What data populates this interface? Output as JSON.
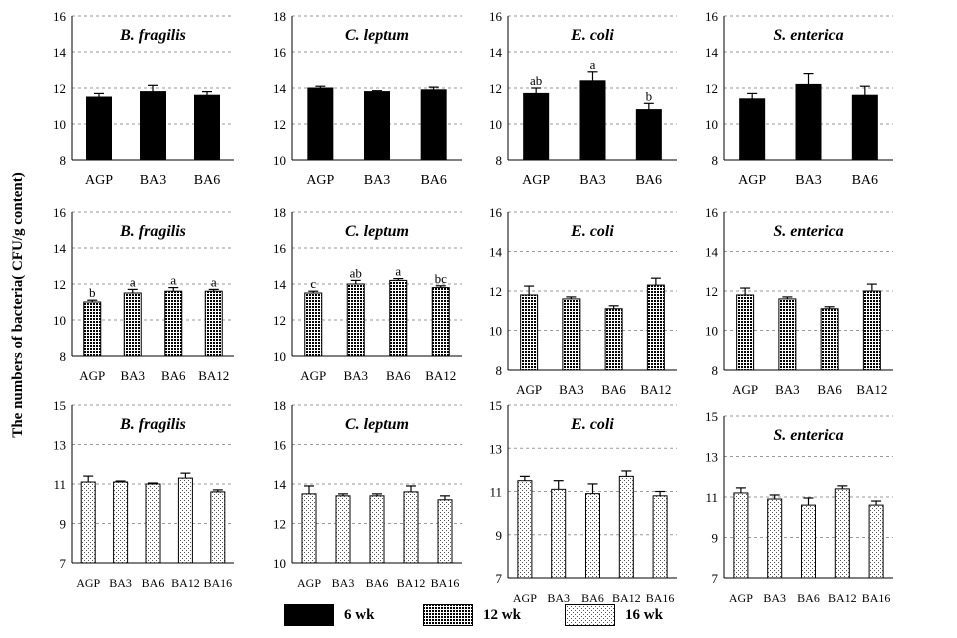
{
  "figure": {
    "y_axis_label": "The numbers of bacteria( CFU/g content)",
    "legend": [
      {
        "label": "6 wk",
        "pattern": "solid"
      },
      {
        "label": "12 wk",
        "pattern": "dense"
      },
      {
        "label": "16 wk",
        "pattern": "light"
      }
    ]
  },
  "chart_data": [
    {
      "type": "bar",
      "title": "B. fragilis",
      "row": "6 wk",
      "pattern": "solid",
      "categories": [
        "AGP",
        "BA3",
        "BA6"
      ],
      "values": [
        11.5,
        11.8,
        11.6
      ],
      "errors": [
        0.2,
        0.35,
        0.2
      ],
      "letters": [
        "",
        "",
        ""
      ],
      "ylim": [
        8,
        16
      ],
      "yticks": [
        8,
        10,
        12,
        14,
        16
      ]
    },
    {
      "type": "bar",
      "title": "C. leptum",
      "row": "6 wk",
      "pattern": "solid",
      "categories": [
        "AGP",
        "BA3",
        "BA6"
      ],
      "values": [
        14.0,
        13.8,
        13.9
      ],
      "errors": [
        0.1,
        0.05,
        0.15
      ],
      "letters": [
        "",
        "",
        ""
      ],
      "ylim": [
        10,
        18
      ],
      "yticks": [
        10,
        12,
        14,
        16,
        18
      ]
    },
    {
      "type": "bar",
      "title": "E. coli",
      "row": "6 wk",
      "pattern": "solid",
      "categories": [
        "AGP",
        "BA3",
        "BA6"
      ],
      "values": [
        11.7,
        12.4,
        10.8
      ],
      "errors": [
        0.3,
        0.5,
        0.35
      ],
      "letters": [
        "ab",
        "a",
        "b"
      ],
      "ylim": [
        8,
        16
      ],
      "yticks": [
        8,
        10,
        12,
        14,
        16
      ]
    },
    {
      "type": "bar",
      "title": "S. enterica",
      "row": "6 wk",
      "pattern": "solid",
      "categories": [
        "AGP",
        "BA3",
        "BA6"
      ],
      "values": [
        11.4,
        12.2,
        11.6
      ],
      "errors": [
        0.3,
        0.6,
        0.5
      ],
      "letters": [
        "",
        "",
        ""
      ],
      "ylim": [
        8,
        16
      ],
      "yticks": [
        8,
        10,
        12,
        14,
        16
      ]
    },
    {
      "type": "bar",
      "title": "B. fragilis",
      "row": "12 wk",
      "pattern": "dense",
      "categories": [
        "AGP",
        "BA3",
        "BA6",
        "BA12"
      ],
      "values": [
        11.0,
        11.5,
        11.6,
        11.6
      ],
      "errors": [
        0.1,
        0.2,
        0.2,
        0.1
      ],
      "letters": [
        "b",
        "a",
        "a",
        "a"
      ],
      "ylim": [
        8,
        16
      ],
      "yticks": [
        8,
        10,
        12,
        14,
        16
      ]
    },
    {
      "type": "bar",
      "title": "C. leptum",
      "row": "12 wk",
      "pattern": "dense",
      "categories": [
        "AGP",
        "BA3",
        "BA6",
        "BA12"
      ],
      "values": [
        13.5,
        14.0,
        14.2,
        13.8
      ],
      "errors": [
        0.1,
        0.2,
        0.1,
        0.1
      ],
      "letters": [
        "c",
        "ab",
        "a",
        "bc"
      ],
      "ylim": [
        10,
        18
      ],
      "yticks": [
        10,
        12,
        14,
        16,
        18
      ]
    },
    {
      "type": "bar",
      "title": "E. coli",
      "row": "12 wk",
      "pattern": "dense",
      "categories": [
        "AGP",
        "BA3",
        "BA6",
        "BA12"
      ],
      "values": [
        11.8,
        11.6,
        11.1,
        12.3
      ],
      "errors": [
        0.45,
        0.1,
        0.15,
        0.35
      ],
      "letters": [
        "",
        "",
        "",
        ""
      ],
      "ylim": [
        8,
        16
      ],
      "yticks": [
        8,
        10,
        12,
        14,
        16
      ]
    },
    {
      "type": "bar",
      "title": "S. enterica",
      "row": "12 wk",
      "pattern": "dense",
      "categories": [
        "AGP",
        "BA3",
        "BA6",
        "BA12"
      ],
      "values": [
        11.8,
        11.6,
        11.1,
        12.0
      ],
      "errors": [
        0.35,
        0.1,
        0.1,
        0.35
      ],
      "letters": [
        "",
        "",
        "",
        ""
      ],
      "ylim": [
        8,
        16
      ],
      "yticks": [
        8,
        10,
        12,
        14,
        16
      ]
    },
    {
      "type": "bar",
      "title": "B. fragilis",
      "row": "16 wk",
      "pattern": "light",
      "categories": [
        "AGP",
        "BA3",
        "BA6",
        "BA12",
        "BA16"
      ],
      "values": [
        11.1,
        11.1,
        11.0,
        11.3,
        10.6
      ],
      "errors": [
        0.3,
        0.05,
        0.05,
        0.25,
        0.1
      ],
      "letters": [
        "",
        "",
        "",
        "",
        ""
      ],
      "ylim": [
        7,
        15
      ],
      "yticks": [
        7,
        9,
        11,
        13,
        15
      ]
    },
    {
      "type": "bar",
      "title": "C. leptum",
      "row": "16 wk",
      "pattern": "light",
      "categories": [
        "AGP",
        "BA3",
        "BA6",
        "BA12",
        "BA16"
      ],
      "values": [
        13.5,
        13.4,
        13.4,
        13.6,
        13.2
      ],
      "errors": [
        0.4,
        0.1,
        0.1,
        0.3,
        0.2
      ],
      "letters": [
        "",
        "",
        "",
        "",
        ""
      ],
      "ylim": [
        10,
        18
      ],
      "yticks": [
        10,
        12,
        14,
        16,
        18
      ]
    },
    {
      "type": "bar",
      "title": "E. coli",
      "row": "16 wk",
      "pattern": "light",
      "categories": [
        "AGP",
        "BA3",
        "BA6",
        "BA12",
        "BA16"
      ],
      "values": [
        11.5,
        11.1,
        10.9,
        11.7,
        10.8
      ],
      "errors": [
        0.2,
        0.4,
        0.45,
        0.25,
        0.2
      ],
      "letters": [
        "",
        "",
        "",
        "",
        ""
      ],
      "ylim": [
        7,
        15
      ],
      "yticks": [
        7,
        9,
        11,
        13,
        15
      ]
    },
    {
      "type": "bar",
      "title": "S. enterica",
      "row": "16 wk",
      "pattern": "light",
      "categories": [
        "AGP",
        "BA3",
        "BA6",
        "BA12",
        "BA16"
      ],
      "values": [
        11.2,
        10.9,
        10.6,
        11.4,
        10.6
      ],
      "errors": [
        0.25,
        0.2,
        0.35,
        0.15,
        0.2
      ],
      "letters": [
        "",
        "",
        "",
        "",
        ""
      ],
      "ylim": [
        7,
        15
      ],
      "yticks": [
        7,
        9,
        11,
        13,
        15
      ]
    }
  ]
}
